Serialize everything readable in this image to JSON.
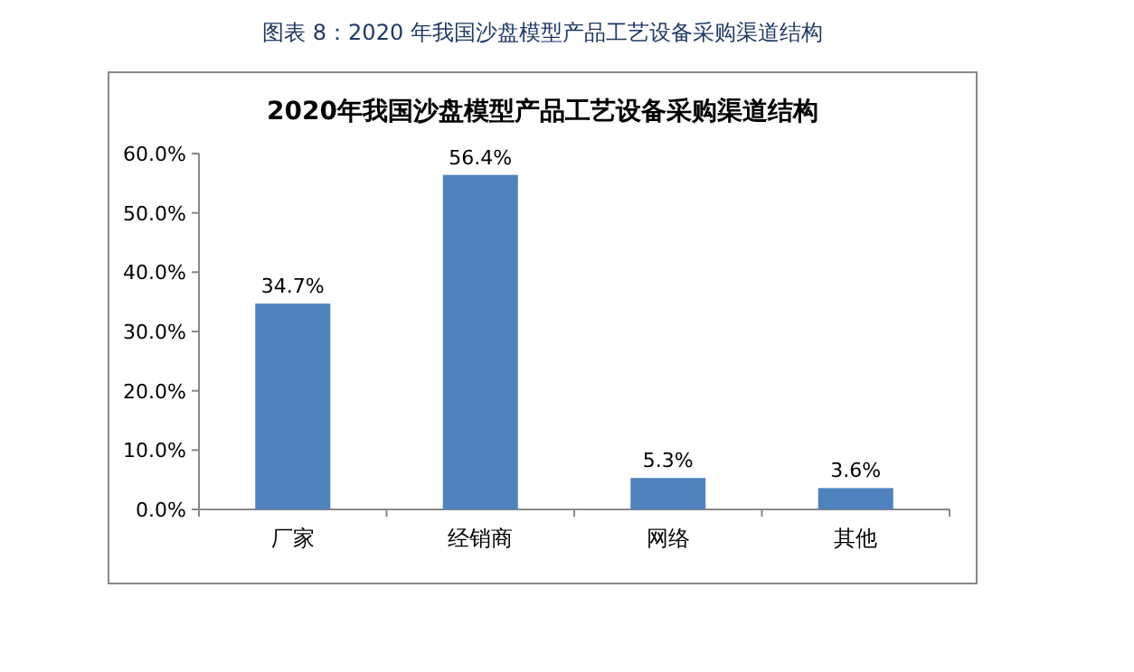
{
  "chart_data": {
    "type": "bar",
    "title": "2020年我国沙盘模型产品工艺设备采购渠道结构",
    "annotations": [
      "图表 8：2020 年我国沙盘模型产品工艺设备采购渠道结构"
    ],
    "categories": [
      "厂家",
      "经销商",
      "网络",
      "其他"
    ],
    "values": [
      34.7,
      56.4,
      5.3,
      3.6
    ],
    "value_labels": [
      "34.7%",
      "56.4%",
      "5.3%",
      "3.6%"
    ],
    "color": "#4f81bd",
    "ylim": [
      0,
      60
    ],
    "yticks": [
      {
        "value": 0,
        "label": "0.0%"
      },
      {
        "value": 10,
        "label": "10.0%"
      },
      {
        "value": 20,
        "label": "20.0%"
      },
      {
        "value": 30,
        "label": "30.0%"
      },
      {
        "value": 40,
        "label": "40.0%"
      },
      {
        "value": 50,
        "label": "50.0%"
      },
      {
        "value": 60,
        "label": "60.0%"
      }
    ]
  }
}
